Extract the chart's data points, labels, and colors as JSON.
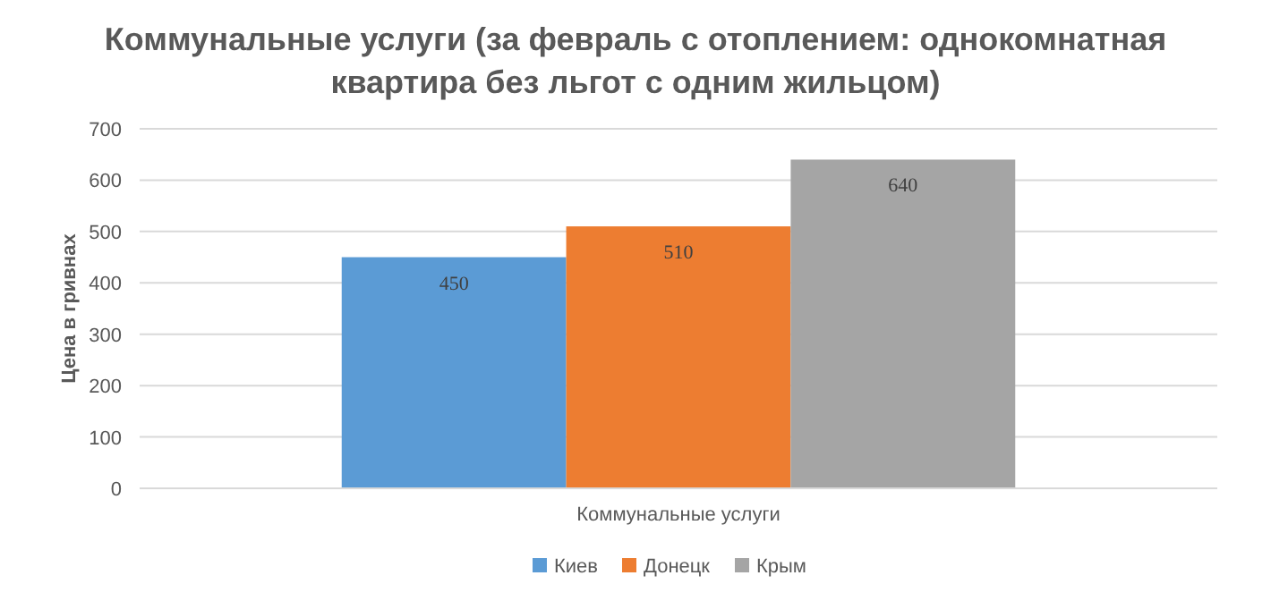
{
  "chart_data": {
    "type": "bar",
    "title": "Коммунальные услуги (за февраль с отоплением: однокомнатная квартира без льгот с одним жильцом)",
    "ylabel": "Цена в гривнах",
    "categories": [
      "Коммунальные услуги"
    ],
    "series": [
      {
        "name": "Киев",
        "color": "#5b9bd5",
        "values": [
          450
        ]
      },
      {
        "name": "Донецк",
        "color": "#ed7d31",
        "values": [
          510
        ]
      },
      {
        "name": "Крым",
        "color": "#a5a5a5",
        "values": [
          640
        ]
      }
    ],
    "ylim": [
      0,
      700
    ],
    "yticks": [
      0,
      100,
      200,
      300,
      400,
      500,
      600,
      700
    ],
    "grid": "y",
    "legend": "bottom",
    "data_labels": true
  }
}
